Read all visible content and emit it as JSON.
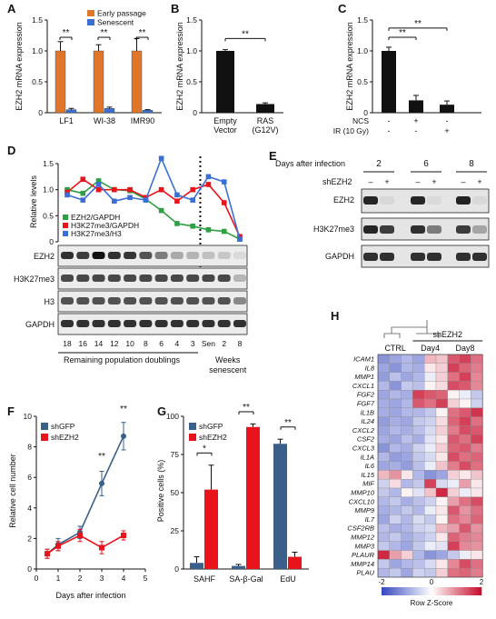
{
  "colors": {
    "orange": "#e0762a",
    "blue": "#3b6fd4",
    "black": "#111111",
    "red": "#e8141c",
    "steel": "#3a5f8a",
    "green": "#2ea043",
    "heat_low": "#3b4cc0",
    "heat_mid": "#ffffff",
    "heat_high": "#c8102e"
  },
  "panels": {
    "A": "A",
    "B": "B",
    "C": "C",
    "D": "D",
    "E": "E",
    "F": "F",
    "G": "G",
    "H": "H"
  },
  "chart_data": [
    {
      "panel": "A",
      "type": "bar",
      "ylabel": "EZH2 mRNA expression",
      "ylim": [
        0,
        1.5
      ],
      "yticks": [
        "0",
        "0.5",
        "1.0",
        "1.5"
      ],
      "categories": [
        "LF1",
        "WI-38",
        "IMR90"
      ],
      "series": [
        {
          "name": "Early passage",
          "color": "#e0762a",
          "values": [
            1.0,
            1.0,
            1.0
          ],
          "err": [
            0.15,
            0.1,
            0.2
          ]
        },
        {
          "name": "Senescent",
          "color": "#3b6fd4",
          "values": [
            0.05,
            0.07,
            0.04
          ],
          "err": [
            0.02,
            0.02,
            0.01
          ]
        }
      ],
      "annotations": [
        "**",
        "**",
        "**"
      ]
    },
    {
      "panel": "B",
      "type": "bar",
      "ylabel": "EZH2 mRNA expression",
      "ylim": [
        0,
        1.5
      ],
      "yticks": [
        "0",
        "0.5",
        "1.0",
        "1.5"
      ],
      "categories": [
        "Empty\nVector",
        "RAS\n(G12V)"
      ],
      "values": [
        1.0,
        0.14
      ],
      "err": [
        0.02,
        0.02
      ],
      "annotations": [
        "**"
      ]
    },
    {
      "panel": "C",
      "type": "bar",
      "ylabel": "EZH2 mRNA expression",
      "ylim": [
        0,
        1.5
      ],
      "yticks": [
        "0",
        "0.5",
        "1.0",
        "1.5"
      ],
      "values": [
        1.0,
        0.2,
        0.13
      ],
      "err": [
        0.06,
        0.08,
        0.06
      ],
      "row_labels": [
        "NCS",
        "IR (10 Gy)"
      ],
      "conditions": [
        [
          "-",
          "+",
          "-"
        ],
        [
          "-",
          "-",
          "+"
        ]
      ],
      "annotations": [
        "**",
        "**"
      ]
    },
    {
      "panel": "D",
      "type": "line",
      "ylabel": "Relative levels",
      "ylim": [
        0,
        1.5
      ],
      "yticks": [
        "0",
        "0.5",
        "1.0",
        "1.5"
      ],
      "categories": [
        "18",
        "16",
        "14",
        "12",
        "10",
        "8",
        "6",
        "4",
        "3",
        "Sen",
        "2",
        "8"
      ],
      "series": [
        {
          "name": "EZH2/GAPDH",
          "color": "#2ea043",
          "values": [
            1.0,
            0.93,
            1.17,
            1.0,
            0.98,
            0.82,
            0.6,
            0.35,
            0.3,
            0.23,
            0.2,
            0.05
          ]
        },
        {
          "name": "H3K27me3/GAPDH",
          "color": "#e8141c",
          "values": [
            0.95,
            1.2,
            1.0,
            1.0,
            1.0,
            0.85,
            1.0,
            0.78,
            1.0,
            1.1,
            0.75,
            0.1
          ]
        },
        {
          "name": "H3K27me3/H3",
          "color": "#3b6fd4",
          "values": [
            0.9,
            0.8,
            1.1,
            0.78,
            0.85,
            0.8,
            1.6,
            0.9,
            0.8,
            1.25,
            1.15,
            0.05
          ]
        }
      ],
      "blots": [
        "EZH2",
        "H3K27me3",
        "H3",
        "GAPDH"
      ],
      "xlabel_left": "Remaining population doublings",
      "xlabel_right": "Weeks\nsenescent"
    },
    {
      "panel": "F",
      "type": "line",
      "ylabel": "Relative cell number",
      "xlabel": "Days after infection",
      "ylim": [
        0,
        10
      ],
      "xlim": [
        0,
        5
      ],
      "yticks": [
        "0",
        "2",
        "4",
        "6",
        "8",
        "10"
      ],
      "xticks": [
        "0",
        "1",
        "2",
        "3",
        "4",
        "5"
      ],
      "series": [
        {
          "name": "shGFP",
          "color": "#3a5f8a",
          "x": [
            0.5,
            1,
            2,
            3,
            4
          ],
          "values": [
            1.0,
            1.6,
            2.4,
            5.6,
            8.7
          ],
          "err": [
            0.3,
            0.4,
            0.4,
            0.8,
            0.9
          ]
        },
        {
          "name": "shEZH2",
          "color": "#e8141c",
          "x": [
            0.5,
            1,
            2,
            3,
            4
          ],
          "values": [
            1.0,
            1.5,
            2.2,
            1.4,
            2.2
          ],
          "err": [
            0.3,
            0.3,
            0.4,
            0.4,
            0.3
          ]
        }
      ],
      "annotations": [
        "**",
        "**"
      ]
    },
    {
      "panel": "G",
      "type": "bar",
      "ylabel": "Positive cells (%)",
      "ylim": [
        0,
        100
      ],
      "yticks": [
        "0",
        "25",
        "50",
        "75",
        "100"
      ],
      "categories": [
        "SAHF",
        "SA-β-Gal",
        "EdU"
      ],
      "series": [
        {
          "name": "shGFP",
          "color": "#3a5f8a",
          "values": [
            4,
            2,
            82
          ],
          "err": [
            4,
            1,
            3
          ]
        },
        {
          "name": "shEZH2",
          "color": "#e8141c",
          "values": [
            52,
            93,
            8
          ],
          "err": [
            16,
            2,
            3
          ]
        }
      ],
      "annotations": [
        "*",
        "**",
        "**"
      ]
    },
    {
      "panel": "H",
      "type": "heatmap",
      "group_labels": [
        "CTRL",
        "shEZH2",
        "Day4",
        "Day8"
      ],
      "genes": [
        "ICAM1",
        "IL8",
        "MMP1",
        "CXCL1",
        "FGF2",
        "FGF7",
        "IL1B",
        "IL24",
        "CXCL2",
        "CSF2",
        "CXCL3",
        "IL1A",
        "IL6",
        "IL15",
        "MIF",
        "MMP10",
        "CXCL10",
        "MMP9",
        "IL7",
        "CSF2RB",
        "MMP12",
        "MMP3",
        "PLAUR",
        "MMP14",
        "PLAU"
      ],
      "values": [
        [
          -1.2,
          -1,
          -0.8,
          -1,
          0.6,
          0.5,
          1.4,
          1.6,
          1.2
        ],
        [
          -1,
          -1.2,
          -0.8,
          -0.9,
          0.2,
          0.4,
          1.6,
          1.3,
          1.1
        ],
        [
          -1.1,
          -0.7,
          -1,
          -0.8,
          -0.2,
          0.4,
          1.2,
          1.6,
          1.0
        ],
        [
          -0.8,
          -1.2,
          -0.6,
          -0.7,
          0.1,
          0.3,
          1.5,
          1.4,
          1.0
        ],
        [
          -1,
          -0.8,
          -0.9,
          1.6,
          1.4,
          1.3,
          0.1,
          -0.2,
          -0.6
        ],
        [
          -0.9,
          -1,
          -0.8,
          1.4,
          1.2,
          1.6,
          0.4,
          0.1,
          -0.5
        ],
        [
          -0.9,
          -1,
          -0.8,
          -0.8,
          -0.6,
          0.1,
          1.2,
          1.4,
          1.7
        ],
        [
          -1.1,
          -0.9,
          -1,
          -0.6,
          -0.5,
          0.3,
          1.3,
          1.6,
          1.2
        ],
        [
          -1,
          -0.8,
          -0.9,
          -0.7,
          -0.4,
          0.4,
          1.1,
          1.5,
          1.4
        ],
        [
          -0.9,
          -1,
          -0.7,
          -0.9,
          -0.3,
          0.2,
          1.4,
          1.2,
          1.6
        ],
        [
          -1.2,
          -0.8,
          -0.9,
          -0.5,
          -0.2,
          0.4,
          1.3,
          1.4,
          1.1
        ],
        [
          -0.8,
          -1.1,
          -1,
          -0.6,
          -0.4,
          0.2,
          1.5,
          1.2,
          1.3
        ],
        [
          -1,
          -0.9,
          -1.1,
          -0.7,
          -0.2,
          0.5,
          1.1,
          1.5,
          1.2
        ],
        [
          0.6,
          0.9,
          0.2,
          -0.8,
          -1.2,
          -1,
          0.4,
          0.2,
          0.5
        ],
        [
          -0.5,
          0.3,
          -0.8,
          -0.6,
          1.6,
          -0.4,
          -0.2,
          0.8,
          0.2
        ],
        [
          -0.6,
          -0.8,
          0.1,
          -0.3,
          0.5,
          1.8,
          0.4,
          -0.2,
          0.2
        ],
        [
          -0.8,
          -0.6,
          -0.9,
          -0.7,
          -0.5,
          0.1,
          0.8,
          1.2,
          1.5
        ],
        [
          -0.9,
          -0.8,
          -0.6,
          -0.8,
          -0.2,
          0.2,
          1.4,
          0.9,
          1.2
        ],
        [
          -1,
          -0.5,
          -0.8,
          -0.4,
          -0.6,
          0.1,
          1.2,
          1.0,
          1.3
        ],
        [
          -0.7,
          -0.9,
          -0.8,
          -0.5,
          -0.4,
          0.6,
          0.8,
          1.4,
          0.9
        ],
        [
          -0.8,
          -0.6,
          -0.9,
          -0.7,
          -0.5,
          0.2,
          1.3,
          1.1,
          1.0
        ],
        [
          -0.6,
          -0.8,
          -1,
          -0.6,
          -0.2,
          -0.3,
          1.6,
          1.0,
          0.9
        ],
        [
          1.8,
          0.8,
          0.4,
          -0.8,
          -1.2,
          -1,
          -0.6,
          -0.2,
          0.2
        ],
        [
          -0.6,
          -1,
          -0.8,
          -0.7,
          -0.4,
          0.2,
          1.0,
          1.5,
          1.2
        ],
        [
          -0.8,
          -0.6,
          -1,
          -0.5,
          -0.6,
          0.4,
          1.2,
          1.3,
          1.1
        ]
      ],
      "color_key": {
        "ticks": [
          "-2",
          "0",
          "2"
        ],
        "label": "Row Z-Score"
      }
    }
  ],
  "blot_E": {
    "header": "Days after infection",
    "days": [
      "2",
      "6",
      "8"
    ],
    "shrow_label": "shEZH2",
    "signs": [
      "–",
      "+",
      "–",
      "+",
      "–",
      "+"
    ],
    "bands": [
      "EZH2",
      "H3K27me3",
      "GAPDH"
    ]
  }
}
